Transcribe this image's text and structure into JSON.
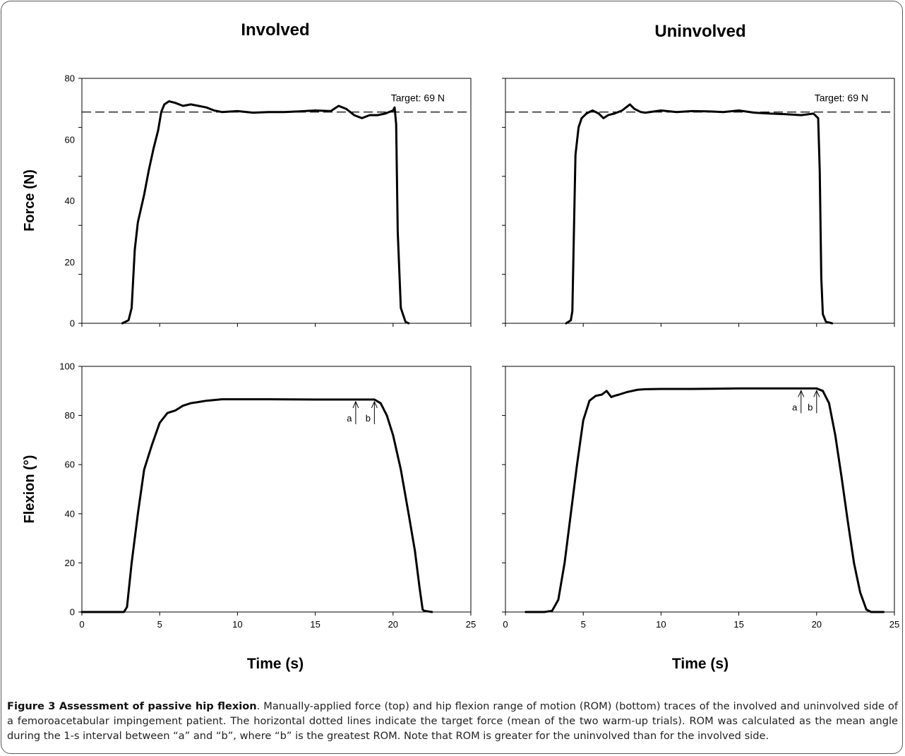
{
  "chart_data": [
    {
      "type": "line",
      "id": "force-involved",
      "title": "Involved",
      "xlabel": "",
      "ylabel": "Force (N)",
      "xlim": [
        0,
        25
      ],
      "ylim": [
        0,
        80
      ],
      "yticks": [
        "0",
        "20",
        "40",
        "60",
        "80"
      ],
      "xticks": [],
      "target": {
        "label": "Target: 69 N",
        "value": 69
      },
      "series": [
        {
          "x": [
            2.6,
            3.0,
            3.2,
            3.4,
            3.6,
            4.0,
            4.3,
            4.6,
            4.9,
            5.1,
            5.3,
            5.6,
            6.0,
            6.5,
            7.0,
            7.5,
            8.0,
            8.5,
            9.0,
            10.0,
            11.0,
            12.0,
            13.0,
            14.0,
            15.0,
            16.0,
            16.5,
            17.0,
            17.5,
            18.0,
            18.5,
            19.0,
            19.5,
            20.0,
            20.1,
            20.2,
            20.3,
            20.5,
            20.8,
            21.0
          ],
          "y": [
            0,
            1,
            5,
            24,
            33,
            42,
            50,
            57,
            63,
            69,
            71.5,
            72.5,
            72,
            71,
            71.5,
            71,
            70.5,
            69.5,
            69,
            69.3,
            68.8,
            69,
            69,
            69.2,
            69.5,
            69.3,
            71,
            70,
            68,
            67,
            68,
            68,
            68.5,
            69.5,
            70.5,
            65,
            30,
            5,
            0.5,
            0
          ]
        }
      ]
    },
    {
      "type": "line",
      "id": "force-uninvolved",
      "title": "Uninvolved",
      "xlabel": "",
      "ylabel": "",
      "xlim": [
        0,
        25
      ],
      "ylim": [
        0,
        80
      ],
      "yticks": [],
      "xticks": [],
      "target": {
        "label": "Target: 69 N",
        "value": 69
      },
      "series": [
        {
          "x": [
            3.9,
            4.2,
            4.3,
            4.4,
            4.5,
            4.7,
            4.9,
            5.2,
            5.6,
            6.0,
            6.3,
            6.6,
            7.0,
            7.5,
            8.0,
            8.3,
            8.7,
            9.0,
            10.0,
            11.0,
            12.0,
            13.0,
            14.0,
            15.0,
            16.0,
            17.0,
            18.0,
            19.0,
            19.8,
            20.1,
            20.2,
            20.3,
            20.4,
            20.6,
            21.0
          ],
          "y": [
            0,
            1,
            4,
            30,
            55,
            64,
            67,
            68.5,
            69.5,
            68.5,
            67,
            68,
            68.5,
            69.5,
            71.5,
            70,
            69,
            68.8,
            69.5,
            69,
            69.3,
            69.2,
            69,
            69.5,
            68.8,
            68.5,
            68.3,
            68,
            68.5,
            67,
            50,
            15,
            3,
            0.5,
            0
          ]
        }
      ]
    },
    {
      "type": "line",
      "id": "flexion-involved",
      "title": "",
      "xlabel": "Time (s)",
      "ylabel": "Flexion (°)",
      "xlim": [
        0,
        25
      ],
      "ylim": [
        0,
        100
      ],
      "yticks": [
        "0",
        "20",
        "40",
        "60",
        "80",
        "100"
      ],
      "xticks": [
        "0",
        "5",
        "10",
        "15",
        "20",
        "25"
      ],
      "markers": [
        {
          "label": "a",
          "x": 17.6
        },
        {
          "label": "b",
          "x": 18.8
        }
      ],
      "series": [
        {
          "x": [
            0,
            1.5,
            2.7,
            2.9,
            3.2,
            3.6,
            4.0,
            4.5,
            5.0,
            5.5,
            6.0,
            6.5,
            7.0,
            7.5,
            8.0,
            9.0,
            10.0,
            12.0,
            15.0,
            17.6,
            18.8,
            19.2,
            19.6,
            20.0,
            20.5,
            21.0,
            21.4,
            21.7,
            21.9,
            22.0,
            22.5
          ],
          "y": [
            0,
            0,
            0,
            2,
            20,
            40,
            58,
            68,
            77,
            81,
            82,
            84,
            85,
            85.5,
            86,
            86.6,
            86.6,
            86.6,
            86.5,
            86.5,
            86.5,
            85,
            80,
            72,
            58,
            40,
            25,
            10,
            1,
            0.5,
            0
          ]
        }
      ]
    },
    {
      "type": "line",
      "id": "flexion-uninvolved",
      "title": "",
      "xlabel": "Time (s)",
      "ylabel": "",
      "xlim": [
        0,
        25
      ],
      "ylim": [
        0,
        100
      ],
      "yticks": [],
      "xticks": [
        "0",
        "5",
        "10",
        "15",
        "20",
        "25"
      ],
      "markers": [
        {
          "label": "a",
          "x": 19.0
        },
        {
          "label": "b",
          "x": 20.0
        }
      ],
      "series": [
        {
          "x": [
            1.3,
            2.5,
            3.0,
            3.4,
            3.8,
            4.2,
            4.6,
            5.0,
            5.4,
            5.8,
            6.2,
            6.5,
            6.8,
            7.0,
            7.3,
            7.8,
            8.5,
            9.0,
            10.0,
            12.0,
            15.0,
            19.0,
            20.0,
            20.4,
            20.8,
            21.2,
            21.6,
            22.0,
            22.4,
            22.8,
            23.2,
            23.5,
            24.3
          ],
          "y": [
            0,
            0,
            0.5,
            5,
            20,
            40,
            60,
            78,
            86,
            88,
            88.5,
            90,
            87.5,
            88,
            88.5,
            89.5,
            90.5,
            90.7,
            90.8,
            90.8,
            91,
            91,
            91,
            90,
            85,
            72,
            55,
            37,
            20,
            8,
            1,
            0,
            0
          ]
        }
      ]
    }
  ],
  "caption": {
    "lead": "Figure 3 Assessment of passive hip flexion",
    "text": ". Manually-applied force (top) and hip flexion range of motion (ROM) (bottom) traces of the involved and uninvolved side of a femoroacetabular impingement patient. The horizontal dotted lines indicate the target force (mean of the two warm-up trials). ROM was calculated as the mean angle during the 1-s interval between “a” and “b”, where “b” is the greatest ROM. Note that ROM is greater for the uninvolved than for the involved side."
  }
}
